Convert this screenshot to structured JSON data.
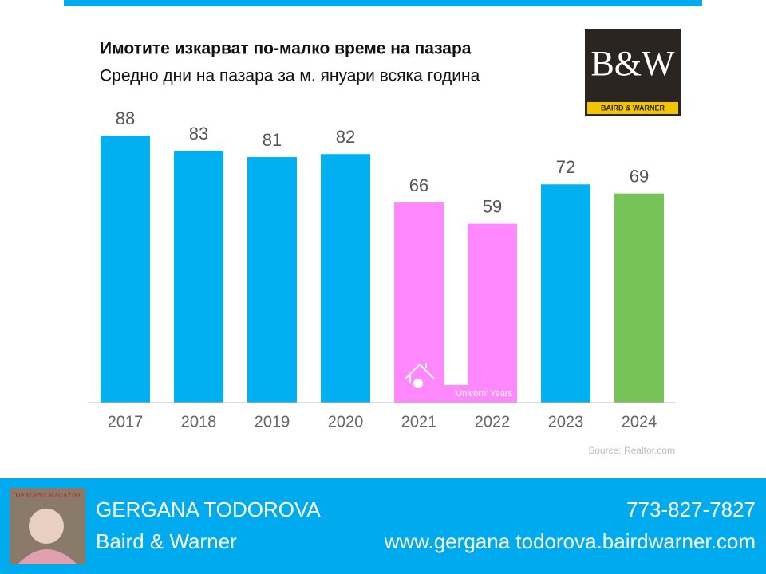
{
  "chart_data": {
    "type": "bar",
    "title": "Имотите изкарват по-малко време на пазара",
    "subtitle": "Средно дни на пазара за м. януари всяка година",
    "categories": [
      "2017",
      "2018",
      "2019",
      "2020",
      "2021",
      "2022",
      "2023",
      "2024"
    ],
    "values": [
      88,
      83,
      81,
      82,
      66,
      59,
      72,
      69
    ],
    "colors": [
      "#00b0f0",
      "#00b0f0",
      "#00b0f0",
      "#00b0f0",
      "#ff88ff",
      "#ff88ff",
      "#00b0f0",
      "#77c35a"
    ],
    "annotation": "'Unicorn' Years",
    "source": "Source: Realtor.com",
    "ylim": [
      0,
      96
    ]
  },
  "logo": {
    "mark": "B&W",
    "text": "BAIRD & WARNER"
  },
  "photo": {
    "caption": "TOP AGENT MAGAZINE"
  },
  "footer": {
    "name": "GERGANA TODOROVA",
    "company": "Baird & Warner",
    "phone": "773-827-7827",
    "website": "www.gergana todorova.bairdwarner.com"
  }
}
